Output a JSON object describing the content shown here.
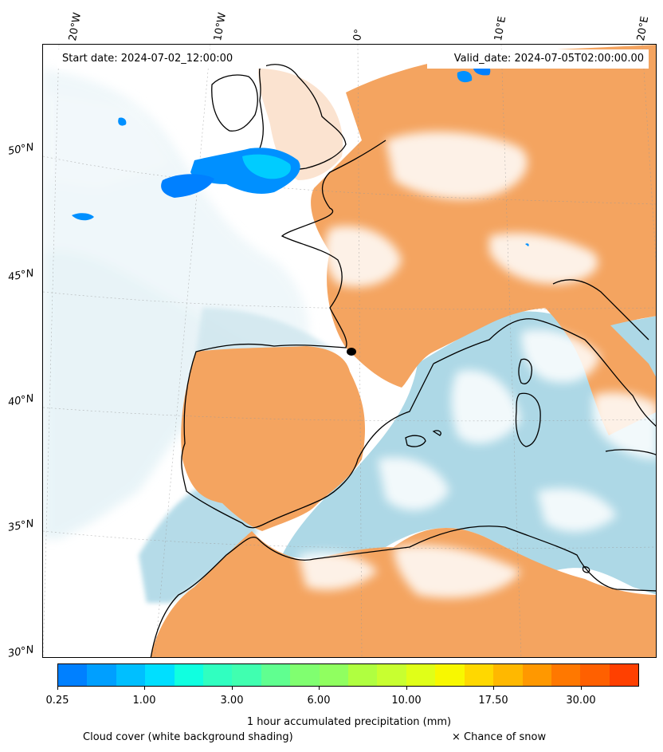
{
  "header": {
    "start_date": "Start date: 2024-07-02_12:00:00",
    "valid_date": "Valid_date: 2024-07-05T02:00:00.00"
  },
  "grid": {
    "longitudes": [
      "20°W",
      "10°W",
      "0°",
      "10°E",
      "20°E"
    ],
    "latitudes": [
      "50°N",
      "45°N",
      "40°N",
      "35°N",
      "30°N"
    ]
  },
  "colors": {
    "land_warm": "#f4a460",
    "sea_cool": "#add8e6",
    "coast": "#000000"
  },
  "colorbar": {
    "title": "1 hour accumulated precipitation (mm)",
    "ticks": [
      "0.25",
      "1.00",
      "3.00",
      "6.00",
      "10.00",
      "17.50",
      "30.00"
    ],
    "colors": [
      "#0080ff",
      "#009fff",
      "#00bfff",
      "#00dfff",
      "#10ffe0",
      "#30ffc0",
      "#40ffb0",
      "#60ff90",
      "#80ff70",
      "#90ff60",
      "#b0ff40",
      "#c8ff30",
      "#e0ff18",
      "#f8f800",
      "#ffd800",
      "#ffb800",
      "#ff9800",
      "#ff7800",
      "#ff6000",
      "#ff4000"
    ]
  },
  "footer": {
    "cloud_cover": "Cloud cover (white background shading)",
    "snow": "× Chance of snow"
  }
}
